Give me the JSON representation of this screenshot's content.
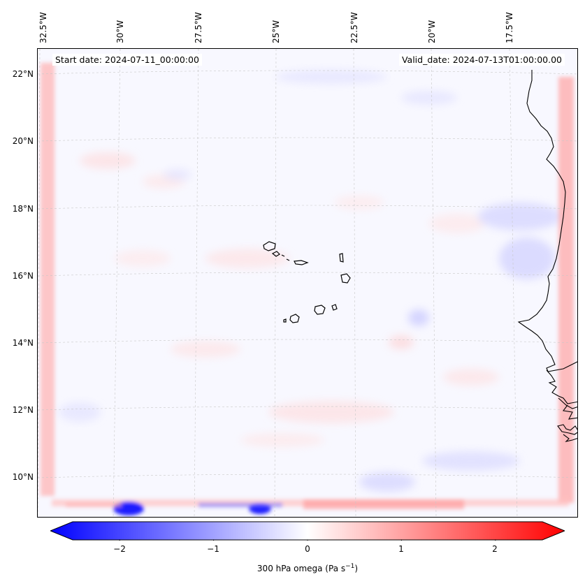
{
  "map": {
    "start_date": "Start date: 2024-07-11_00:00:00",
    "valid_date": "Valid_date: 2024-07-13T01:00:00.00",
    "lon_labels": [
      "32.5°W",
      "30°W",
      "27.5°W",
      "25°W",
      "22.5°W",
      "20°W",
      "17.5°W"
    ],
    "lat_labels": [
      "22°N",
      "20°N",
      "18°N",
      "16°N",
      "14°N",
      "12°N",
      "10°N"
    ],
    "colors": {
      "negative": "#0000ff",
      "positive": "#ff0000",
      "coast": "#000000",
      "grid": "#c8c8c8"
    }
  },
  "colorbar": {
    "ticks": [
      "−2",
      "−1",
      "0",
      "1",
      "2"
    ],
    "tick_values": [
      -2,
      -1,
      0,
      1,
      2
    ],
    "range": [
      -2.5,
      2.5
    ],
    "label": "300 hPa omega (Pa s",
    "label_exp": "−1",
    "label_end": ")"
  }
}
